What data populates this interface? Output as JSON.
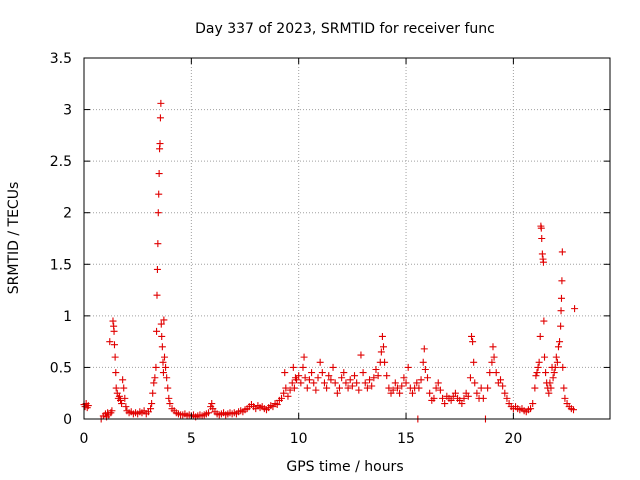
{
  "chart_data": {
    "type": "scatter",
    "title": "Day 337 of 2023, SRMTID for receiver func",
    "xlabel": "GPS time / hours",
    "ylabel": "SRMTID / TECUs",
    "xlim": [
      0,
      24.5
    ],
    "ylim": [
      0,
      3.5
    ],
    "xticks": [
      0,
      5,
      10,
      15,
      20
    ],
    "xtick_labels": [
      "0",
      "5",
      "10",
      "15",
      "20"
    ],
    "yticks": [
      0,
      0.5,
      1,
      1.5,
      2,
      2.5,
      3,
      3.5
    ],
    "ytick_labels": [
      "0",
      "0.5",
      "1",
      "1.5",
      "2",
      "2.5",
      "3",
      "3.5"
    ],
    "grid": true,
    "marker": "+",
    "color": "#e00000",
    "series": [
      {
        "name": "SRMTID",
        "points": [
          [
            0.0,
            0.14
          ],
          [
            0.05,
            0.12
          ],
          [
            0.1,
            0.15
          ],
          [
            0.15,
            0.11
          ],
          [
            0.2,
            0.13
          ],
          [
            0.8,
            0.0
          ],
          [
            0.9,
            0.03
          ],
          [
            1.0,
            0.05
          ],
          [
            1.05,
            0.02
          ],
          [
            1.1,
            0.06
          ],
          [
            1.15,
            0.04
          ],
          [
            1.2,
            0.75
          ],
          [
            1.25,
            0.06
          ],
          [
            1.3,
            0.08
          ],
          [
            1.35,
            0.95
          ],
          [
            1.38,
            0.9
          ],
          [
            1.4,
            0.85
          ],
          [
            1.42,
            0.72
          ],
          [
            1.45,
            0.6
          ],
          [
            1.48,
            0.45
          ],
          [
            1.5,
            0.3
          ],
          [
            1.55,
            0.25
          ],
          [
            1.6,
            0.2
          ],
          [
            1.65,
            0.22
          ],
          [
            1.7,
            0.18
          ],
          [
            1.75,
            0.15
          ],
          [
            1.8,
            0.38
          ],
          [
            1.85,
            0.3
          ],
          [
            1.9,
            0.2
          ],
          [
            1.95,
            0.12
          ],
          [
            2.0,
            0.08
          ],
          [
            2.1,
            0.06
          ],
          [
            2.2,
            0.07
          ],
          [
            2.3,
            0.05
          ],
          [
            2.4,
            0.06
          ],
          [
            2.5,
            0.05
          ],
          [
            2.6,
            0.07
          ],
          [
            2.7,
            0.06
          ],
          [
            2.8,
            0.08
          ],
          [
            2.9,
            0.05
          ],
          [
            3.0,
            0.07
          ],
          [
            3.1,
            0.1
          ],
          [
            3.15,
            0.15
          ],
          [
            3.2,
            0.25
          ],
          [
            3.25,
            0.35
          ],
          [
            3.3,
            0.4
          ],
          [
            3.35,
            0.5
          ],
          [
            3.38,
            0.85
          ],
          [
            3.4,
            1.2
          ],
          [
            3.42,
            1.45
          ],
          [
            3.44,
            1.7
          ],
          [
            3.46,
            2.0
          ],
          [
            3.48,
            2.18
          ],
          [
            3.5,
            2.38
          ],
          [
            3.52,
            2.62
          ],
          [
            3.54,
            2.67
          ],
          [
            3.56,
            2.92
          ],
          [
            3.58,
            3.06
          ],
          [
            3.6,
            0.92
          ],
          [
            3.62,
            0.8
          ],
          [
            3.65,
            0.7
          ],
          [
            3.68,
            0.55
          ],
          [
            3.7,
            0.45
          ],
          [
            3.72,
            0.96
          ],
          [
            3.75,
            0.6
          ],
          [
            3.8,
            0.5
          ],
          [
            3.85,
            0.4
          ],
          [
            3.9,
            0.3
          ],
          [
            3.95,
            0.2
          ],
          [
            4.0,
            0.15
          ],
          [
            4.1,
            0.1
          ],
          [
            4.2,
            0.08
          ],
          [
            4.3,
            0.06
          ],
          [
            4.4,
            0.05
          ],
          [
            4.5,
            0.04
          ],
          [
            4.6,
            0.04
          ],
          [
            4.7,
            0.05
          ],
          [
            4.8,
            0.03
          ],
          [
            4.9,
            0.04
          ],
          [
            5.0,
            0.03
          ],
          [
            5.1,
            0.04
          ],
          [
            5.2,
            0.02
          ],
          [
            5.3,
            0.03
          ],
          [
            5.4,
            0.04
          ],
          [
            5.5,
            0.03
          ],
          [
            5.6,
            0.04
          ],
          [
            5.7,
            0.05
          ],
          [
            5.8,
            0.06
          ],
          [
            5.9,
            0.12
          ],
          [
            5.95,
            0.15
          ],
          [
            6.0,
            0.1
          ],
          [
            6.1,
            0.07
          ],
          [
            6.2,
            0.05
          ],
          [
            6.3,
            0.04
          ],
          [
            6.4,
            0.05
          ],
          [
            6.5,
            0.06
          ],
          [
            6.6,
            0.04
          ],
          [
            6.7,
            0.05
          ],
          [
            6.8,
            0.06
          ],
          [
            6.9,
            0.05
          ],
          [
            7.0,
            0.06
          ],
          [
            7.1,
            0.05
          ],
          [
            7.2,
            0.07
          ],
          [
            7.3,
            0.08
          ],
          [
            7.4,
            0.07
          ],
          [
            7.5,
            0.09
          ],
          [
            7.6,
            0.1
          ],
          [
            7.7,
            0.12
          ],
          [
            7.8,
            0.14
          ],
          [
            7.9,
            0.12
          ],
          [
            8.0,
            0.1
          ],
          [
            8.1,
            0.13
          ],
          [
            8.2,
            0.11
          ],
          [
            8.3,
            0.12
          ],
          [
            8.4,
            0.1
          ],
          [
            8.5,
            0.09
          ],
          [
            8.6,
            0.11
          ],
          [
            8.7,
            0.13
          ],
          [
            8.8,
            0.12
          ],
          [
            8.9,
            0.15
          ],
          [
            9.0,
            0.14
          ],
          [
            9.1,
            0.18
          ],
          [
            9.2,
            0.2
          ],
          [
            9.3,
            0.25
          ],
          [
            9.35,
            0.45
          ],
          [
            9.4,
            0.3
          ],
          [
            9.5,
            0.22
          ],
          [
            9.6,
            0.28
          ],
          [
            9.7,
            0.35
          ],
          [
            9.75,
            0.5
          ],
          [
            9.8,
            0.3
          ],
          [
            9.85,
            0.4
          ],
          [
            9.9,
            0.38
          ],
          [
            10.0,
            0.42
          ],
          [
            10.1,
            0.35
          ],
          [
            10.2,
            0.5
          ],
          [
            10.25,
            0.6
          ],
          [
            10.3,
            0.4
          ],
          [
            10.4,
            0.3
          ],
          [
            10.5,
            0.38
          ],
          [
            10.6,
            0.45
          ],
          [
            10.7,
            0.35
          ],
          [
            10.8,
            0.28
          ],
          [
            10.9,
            0.4
          ],
          [
            11.0,
            0.55
          ],
          [
            11.1,
            0.45
          ],
          [
            11.2,
            0.35
          ],
          [
            11.3,
            0.3
          ],
          [
            11.4,
            0.42
          ],
          [
            11.5,
            0.38
          ],
          [
            11.6,
            0.5
          ],
          [
            11.7,
            0.35
          ],
          [
            11.8,
            0.25
          ],
          [
            11.9,
            0.3
          ],
          [
            12.0,
            0.4
          ],
          [
            12.1,
            0.45
          ],
          [
            12.2,
            0.35
          ],
          [
            12.3,
            0.3
          ],
          [
            12.4,
            0.38
          ],
          [
            12.5,
            0.32
          ],
          [
            12.6,
            0.42
          ],
          [
            12.7,
            0.35
          ],
          [
            12.8,
            0.28
          ],
          [
            12.9,
            0.62
          ],
          [
            13.0,
            0.45
          ],
          [
            13.1,
            0.35
          ],
          [
            13.2,
            0.3
          ],
          [
            13.3,
            0.38
          ],
          [
            13.4,
            0.32
          ],
          [
            13.5,
            0.4
          ],
          [
            13.6,
            0.48
          ],
          [
            13.7,
            0.42
          ],
          [
            13.8,
            0.55
          ],
          [
            13.85,
            0.65
          ],
          [
            13.9,
            0.8
          ],
          [
            13.95,
            0.7
          ],
          [
            14.0,
            0.55
          ],
          [
            14.1,
            0.42
          ],
          [
            14.2,
            0.3
          ],
          [
            14.3,
            0.25
          ],
          [
            14.4,
            0.28
          ],
          [
            14.5,
            0.35
          ],
          [
            14.6,
            0.3
          ],
          [
            14.7,
            0.25
          ],
          [
            14.8,
            0.32
          ],
          [
            14.9,
            0.4
          ],
          [
            15.0,
            0.35
          ],
          [
            15.1,
            0.5
          ],
          [
            15.2,
            0.3
          ],
          [
            15.3,
            0.25
          ],
          [
            15.4,
            0.3
          ],
          [
            15.5,
            0.35
          ],
          [
            15.55,
            0.0
          ],
          [
            15.6,
            0.3
          ],
          [
            15.7,
            0.38
          ],
          [
            15.8,
            0.55
          ],
          [
            15.85,
            0.68
          ],
          [
            15.9,
            0.48
          ],
          [
            16.0,
            0.4
          ],
          [
            16.1,
            0.25
          ],
          [
            16.2,
            0.18
          ],
          [
            16.3,
            0.2
          ],
          [
            16.4,
            0.3
          ],
          [
            16.5,
            0.35
          ],
          [
            16.6,
            0.28
          ],
          [
            16.7,
            0.2
          ],
          [
            16.8,
            0.15
          ],
          [
            16.9,
            0.22
          ],
          [
            17.0,
            0.2
          ],
          [
            17.1,
            0.18
          ],
          [
            17.2,
            0.22
          ],
          [
            17.3,
            0.25
          ],
          [
            17.4,
            0.2
          ],
          [
            17.5,
            0.18
          ],
          [
            17.6,
            0.15
          ],
          [
            17.7,
            0.2
          ],
          [
            17.8,
            0.25
          ],
          [
            17.9,
            0.22
          ],
          [
            18.0,
            0.4
          ],
          [
            18.05,
            0.8
          ],
          [
            18.1,
            0.75
          ],
          [
            18.15,
            0.55
          ],
          [
            18.2,
            0.35
          ],
          [
            18.3,
            0.25
          ],
          [
            18.4,
            0.2
          ],
          [
            18.5,
            0.3
          ],
          [
            18.6,
            0.2
          ],
          [
            18.7,
            0.0
          ],
          [
            18.8,
            0.3
          ],
          [
            18.9,
            0.45
          ],
          [
            19.0,
            0.55
          ],
          [
            19.05,
            0.7
          ],
          [
            19.1,
            0.6
          ],
          [
            19.2,
            0.45
          ],
          [
            19.3,
            0.35
          ],
          [
            19.4,
            0.38
          ],
          [
            19.5,
            0.32
          ],
          [
            19.6,
            0.25
          ],
          [
            19.7,
            0.2
          ],
          [
            19.8,
            0.15
          ],
          [
            19.9,
            0.12
          ],
          [
            20.0,
            0.1
          ],
          [
            20.1,
            0.12
          ],
          [
            20.2,
            0.1
          ],
          [
            20.3,
            0.09
          ],
          [
            20.4,
            0.1
          ],
          [
            20.5,
            0.08
          ],
          [
            20.6,
            0.07
          ],
          [
            20.7,
            0.09
          ],
          [
            20.8,
            0.1
          ],
          [
            20.9,
            0.15
          ],
          [
            21.0,
            0.3
          ],
          [
            21.05,
            0.42
          ],
          [
            21.1,
            0.45
          ],
          [
            21.15,
            0.5
          ],
          [
            21.2,
            0.55
          ],
          [
            21.25,
            0.8
          ],
          [
            21.28,
            1.87
          ],
          [
            21.3,
            1.85
          ],
          [
            21.32,
            1.75
          ],
          [
            21.35,
            1.6
          ],
          [
            21.38,
            1.55
          ],
          [
            21.4,
            1.52
          ],
          [
            21.42,
            0.95
          ],
          [
            21.45,
            0.6
          ],
          [
            21.5,
            0.45
          ],
          [
            21.55,
            0.35
          ],
          [
            21.6,
            0.3
          ],
          [
            21.65,
            0.25
          ],
          [
            21.7,
            0.35
          ],
          [
            21.75,
            0.3
          ],
          [
            21.8,
            0.5
          ],
          [
            21.85,
            0.4
          ],
          [
            21.9,
            0.45
          ],
          [
            21.95,
            0.5
          ],
          [
            22.0,
            0.6
          ],
          [
            22.05,
            0.55
          ],
          [
            22.1,
            0.7
          ],
          [
            22.15,
            0.75
          ],
          [
            22.2,
            0.9
          ],
          [
            22.22,
            1.05
          ],
          [
            22.24,
            1.17
          ],
          [
            22.26,
            1.34
          ],
          [
            22.28,
            1.62
          ],
          [
            22.3,
            0.5
          ],
          [
            22.35,
            0.3
          ],
          [
            22.4,
            0.2
          ],
          [
            22.5,
            0.15
          ],
          [
            22.6,
            0.12
          ],
          [
            22.7,
            0.1
          ],
          [
            22.8,
            0.09
          ],
          [
            22.85,
            1.07
          ]
        ]
      }
    ]
  }
}
